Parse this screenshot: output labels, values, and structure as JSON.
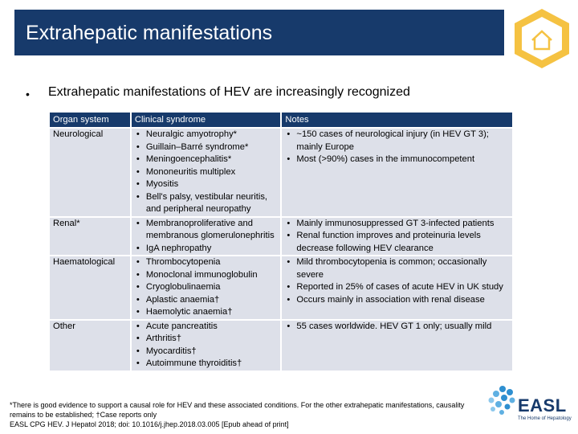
{
  "slide": {
    "title": "Extrahepatic manifestations",
    "bullet": "Extrahepatic manifestations of HEV are increasingly recognized",
    "home_icon": "home-icon"
  },
  "table": {
    "headers": [
      "Organ system",
      "Clinical syndrome",
      "Notes"
    ],
    "rows": [
      {
        "organ": "Neurological",
        "syndromes": [
          "Neuralgic amyotrophy*",
          "Guillain–Barré syndrome*",
          "Meningoencephalitis*",
          "Mononeuritis multiplex",
          "Myositis",
          "Bell's palsy, vestibular neuritis, and peripheral neuropathy"
        ],
        "notes": [
          "~150 cases of neurological injury (in HEV GT 3); mainly Europe",
          "Most (>90%) cases in the immunocompetent"
        ]
      },
      {
        "organ": "Renal*",
        "syndromes": [
          "Membranoproliferative and membranous glomerulonephritis",
          "IgA nephropathy"
        ],
        "notes": [
          "Mainly immunosuppressed GT 3-infected patients",
          "Renal function improves and proteinuria levels decrease following HEV clearance"
        ]
      },
      {
        "organ": "Haematological",
        "syndromes": [
          "Thrombocytopenia",
          "Monoclonal immunoglobulin",
          "Cryoglobulinaemia",
          "Aplastic anaemia†",
          "Haemolytic anaemia†"
        ],
        "notes": [
          "Mild thrombocytopenia is common; occasionally severe",
          "Reported in 25% of cases of acute HEV in UK study",
          "Occurs mainly in association with renal disease"
        ]
      },
      {
        "organ": "Other",
        "syndromes": [
          "Acute pancreatitis",
          "Arthritis†",
          "Myocarditis†",
          "Autoimmune thyroiditis†"
        ],
        "notes": [
          "55 cases worldwide. HEV GT 1 only; usually mild"
        ]
      }
    ]
  },
  "footnote": {
    "line1": "*There is good evidence to support a causal role for HEV and these associated conditions. For the other extrahepatic manifestations, causality remains to be established; †Case reports only",
    "line2": "EASL CPG HEV. J Hepatol 2018; doi: 10.1016/j.jhep.2018.03.005 [Epub ahead of print]"
  },
  "logo": {
    "name": "EASL",
    "tagline": "The Home of Hepatology"
  },
  "colors": {
    "header_bg": "#173a6b",
    "table_cell_bg": "#dde0e9",
    "hex_accent": "#f5c242"
  }
}
